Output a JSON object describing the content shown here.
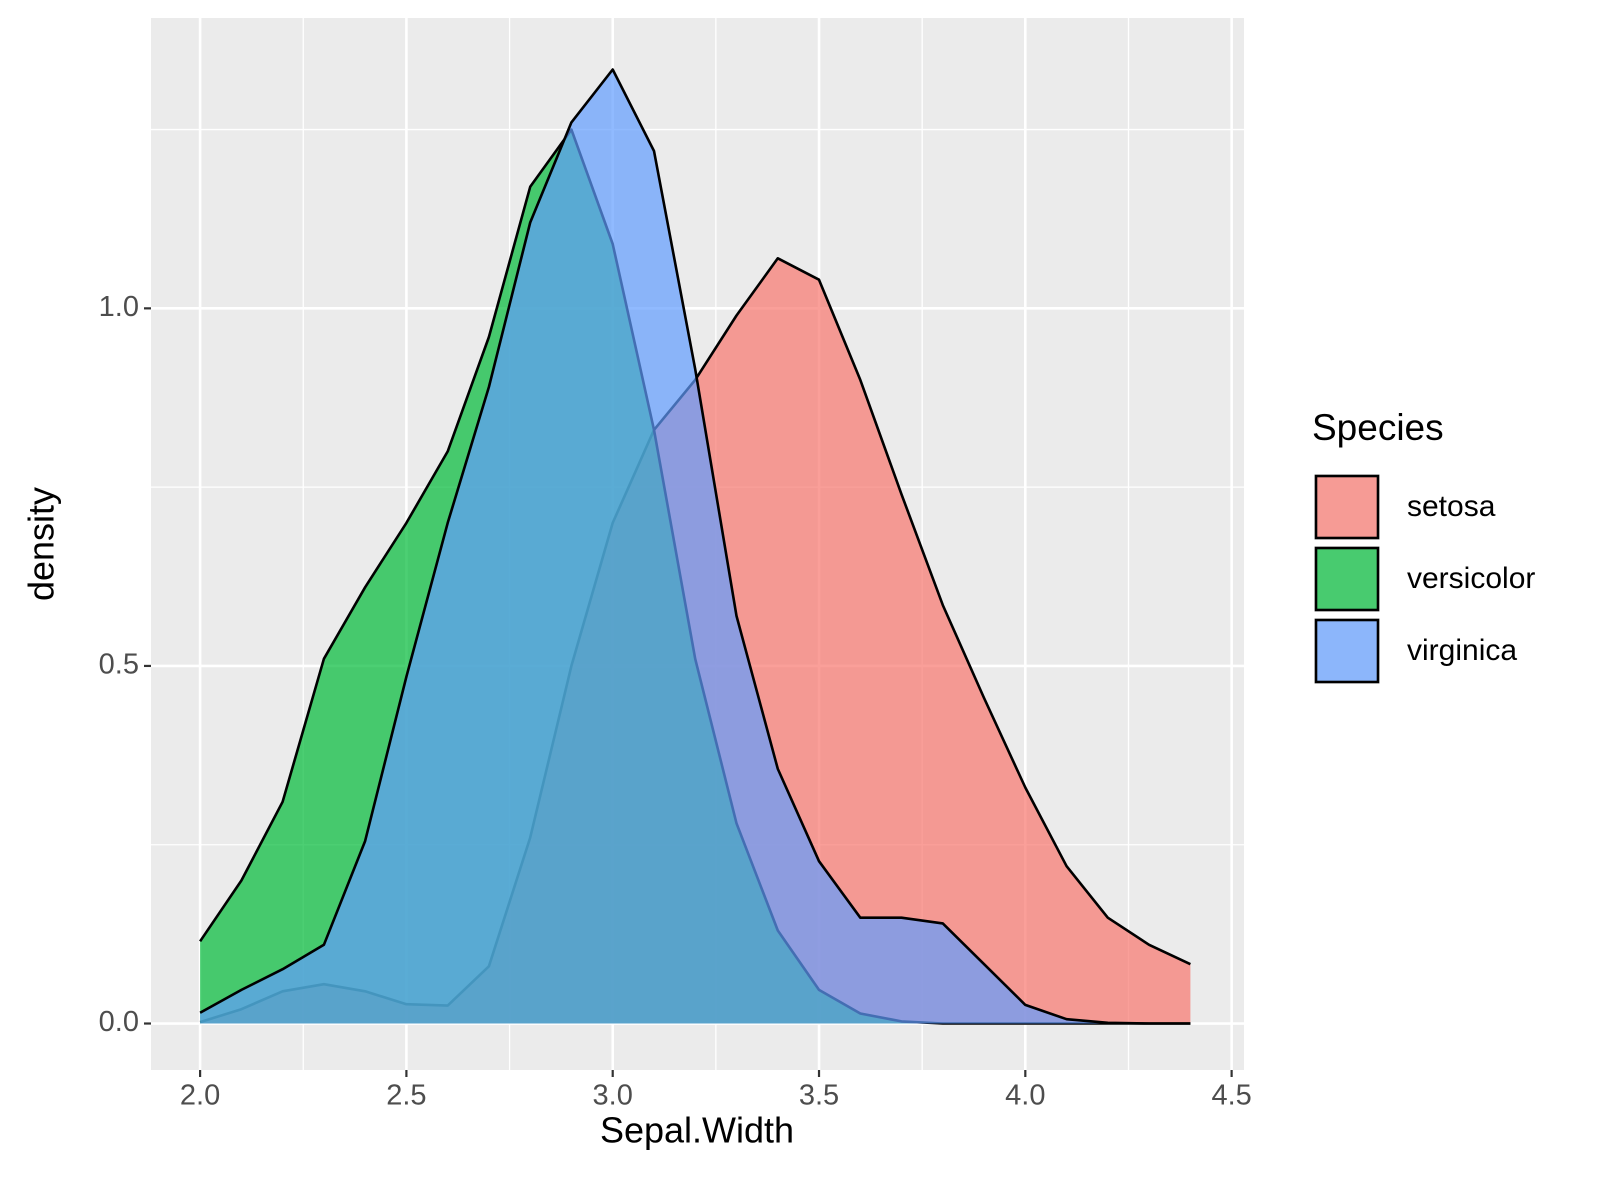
{
  "chart_data": {
    "type": "density",
    "x_label": "Sepal.Width",
    "y_label": "density",
    "legend_title": "Species",
    "legend_position": "right",
    "grid": true,
    "background": "#ebebeb",
    "fill_opacity": 0.7,
    "x": [
      2.0,
      2.1,
      2.2,
      2.3,
      2.4,
      2.5,
      2.6,
      2.7,
      2.8,
      2.9,
      3.0,
      3.1,
      3.2,
      3.3,
      3.4,
      3.5,
      3.6,
      3.7,
      3.8,
      3.9,
      4.0,
      4.1,
      4.2,
      4.3,
      4.4
    ],
    "series": [
      {
        "name": "setosa",
        "color": "#F8766D",
        "values": [
          0.002,
          0.02,
          0.045,
          0.055,
          0.045,
          0.027,
          0.025,
          0.08,
          0.26,
          0.5,
          0.7,
          0.83,
          0.9,
          0.99,
          1.07,
          1.04,
          0.9,
          0.74,
          0.585,
          0.455,
          0.33,
          0.22,
          0.148,
          0.11,
          0.083
        ]
      },
      {
        "name": "versicolor",
        "color": "#00BA38",
        "values": [
          0.115,
          0.2,
          0.31,
          0.51,
          0.61,
          0.7,
          0.8,
          0.96,
          1.17,
          1.25,
          1.09,
          0.83,
          0.51,
          0.28,
          0.13,
          0.047,
          0.014,
          0.003,
          0,
          0,
          0,
          0,
          0,
          0,
          0
        ]
      },
      {
        "name": "virginica",
        "color": "#619CFF",
        "values": [
          0.015,
          0.047,
          0.076,
          0.11,
          0.255,
          0.485,
          0.7,
          0.89,
          1.12,
          1.26,
          1.334,
          1.22,
          0.915,
          0.57,
          0.356,
          0.227,
          0.148,
          0.148,
          0.14,
          0.083,
          0.026,
          0.006,
          0.001,
          0,
          0
        ]
      }
    ],
    "xlim": [
      1.881,
      4.53
    ],
    "ylim": [
      -0.065,
      1.406
    ],
    "xticks": [
      {
        "value": 2,
        "label": "2.0"
      },
      {
        "value": 2.5,
        "label": "2.5"
      },
      {
        "value": 3,
        "label": "3.0"
      },
      {
        "value": 3.5,
        "label": "3.5"
      },
      {
        "value": 4,
        "label": "4.0"
      },
      {
        "value": 4.5,
        "label": "4.5"
      }
    ],
    "yticks": [
      {
        "value": 0,
        "label": "0.0"
      },
      {
        "value": 0.5,
        "label": "0.5"
      },
      {
        "value": 1,
        "label": "1.0"
      }
    ],
    "x_minor_ticks": [
      2.25,
      2.75,
      3.25,
      3.75,
      4.25
    ],
    "y_minor_ticks": [
      0.25,
      0.75,
      1.25
    ]
  }
}
